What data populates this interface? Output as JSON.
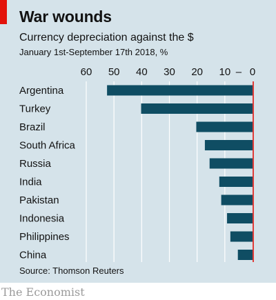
{
  "header": {
    "title": "War wounds",
    "subtitle": "Currency depreciation against the $",
    "period": "January 1st-September 17th 2018, %"
  },
  "footer": {
    "source": "Source: Thomson Reuters",
    "brand": "The Economist"
  },
  "colors": {
    "bar": "#0f4d63",
    "background": "#d5e3ea",
    "grid": "#ffffff",
    "zero_line": "#e3120b",
    "accent": "#e3120b"
  },
  "chart_data": {
    "type": "bar",
    "orientation": "horizontal",
    "direction": "negative values extend left",
    "title": "War wounds",
    "subtitle": "Currency depreciation against the $",
    "xlim": [
      -60,
      0
    ],
    "ticks": [
      {
        "value": -60,
        "label": "60"
      },
      {
        "value": -50,
        "label": "50"
      },
      {
        "value": -40,
        "label": "40"
      },
      {
        "value": -30,
        "label": "30"
      },
      {
        "value": -20,
        "label": "20"
      },
      {
        "value": -10,
        "label": "10"
      },
      {
        "value": 0,
        "label": "0"
      }
    ],
    "minus_sign": "–",
    "grid": true,
    "categories": [
      "Argentina",
      "Turkey",
      "Brazil",
      "South Africa",
      "Russia",
      "India",
      "Pakistan",
      "Indonesia",
      "Philippines",
      "China"
    ],
    "values": [
      -52.5,
      -40.2,
      -20.3,
      -17.2,
      -15.5,
      -12.0,
      -11.3,
      -9.2,
      -8.0,
      -5.3
    ]
  }
}
